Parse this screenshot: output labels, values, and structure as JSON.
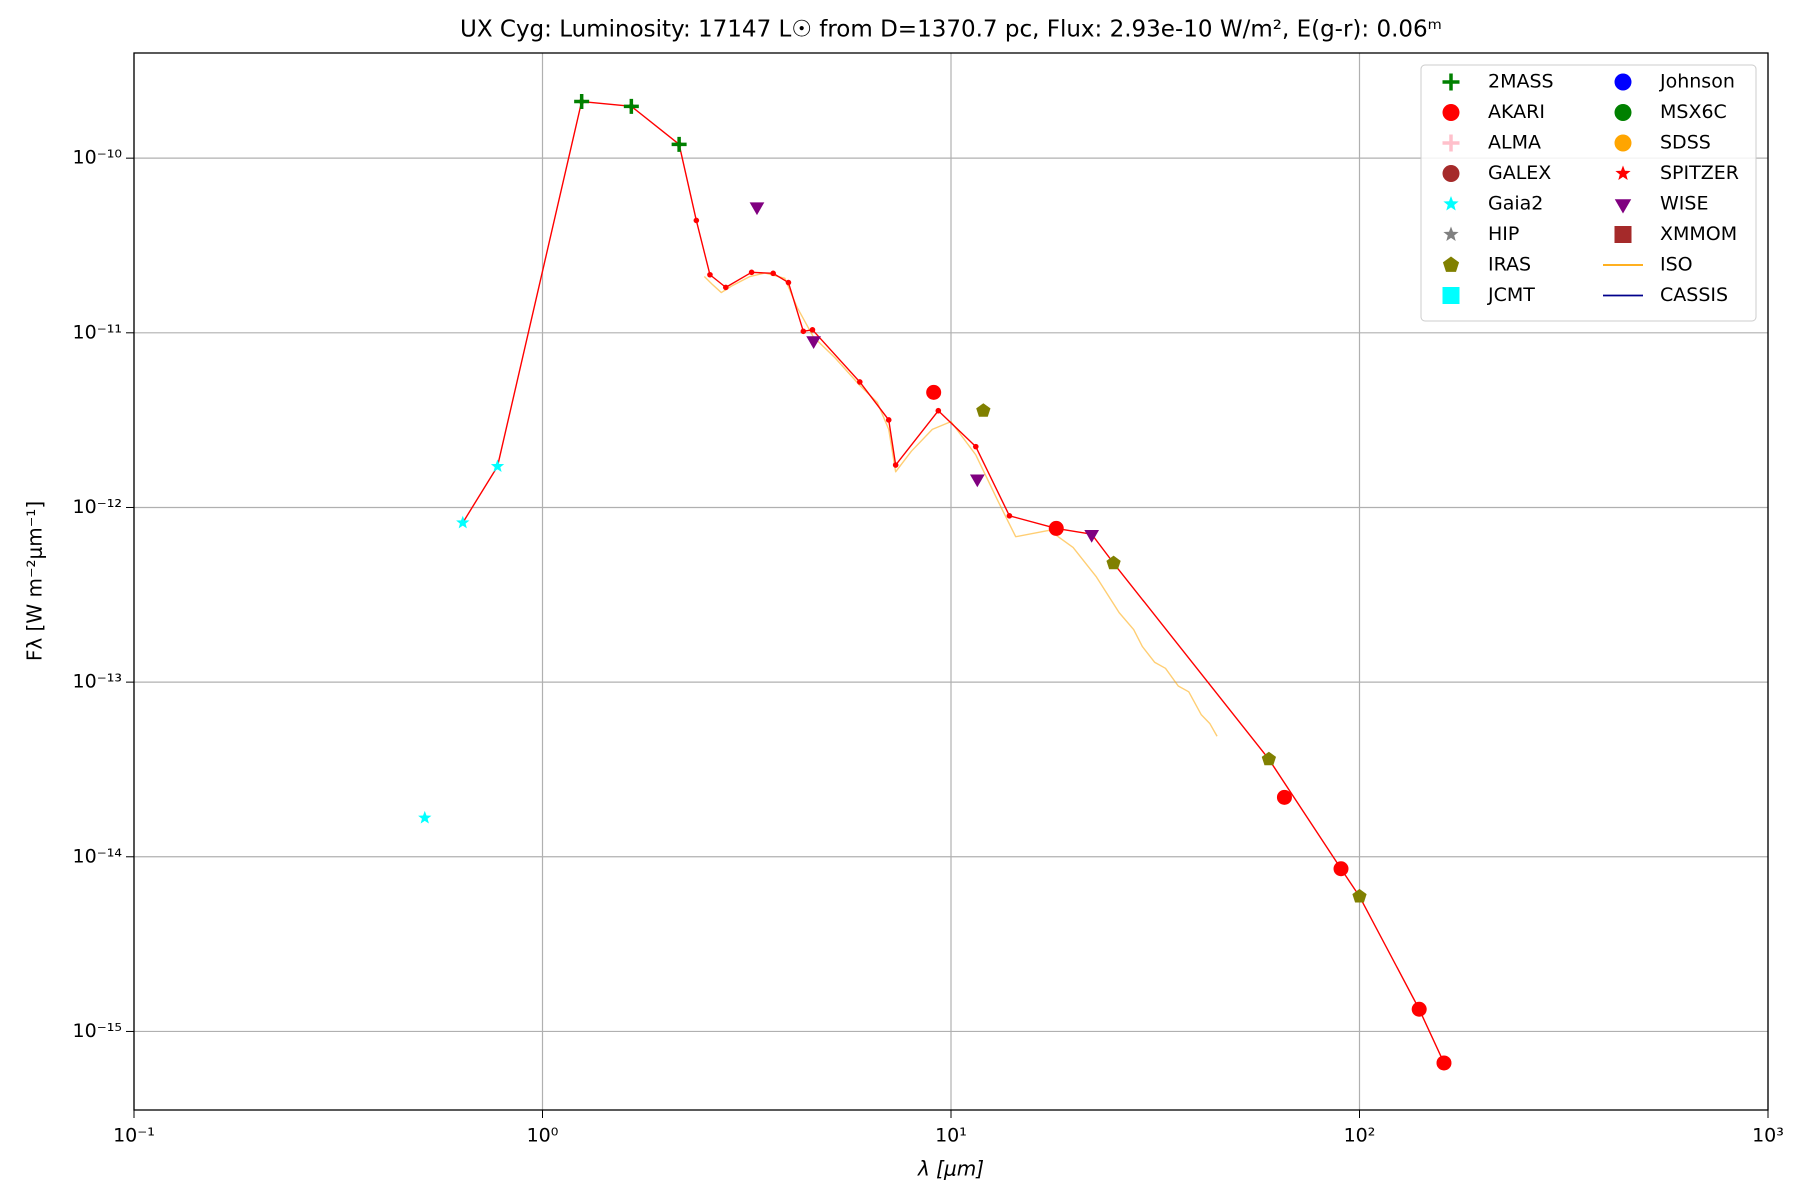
{
  "chart_data": {
    "type": "scatter",
    "title": "UX Cyg:  Luminosity: 17147 L☉ from D=1370.7 pc, Flux: 2.93e-10 W/m², E(g-r): 0.06ᵐ",
    "x_label": "λ [μm]",
    "y_label": "Fλ [W m⁻²μm⁻¹]",
    "xscale": "log",
    "yscale": "log",
    "grid": true,
    "legend_position": "upper-right",
    "xlim": [
      0.1,
      1000
    ],
    "ylim": [
      3.55e-16,
      4e-10
    ],
    "xticks": [
      {
        "value": 0.1,
        "label": "10⁻¹"
      },
      {
        "value": 1,
        "label": "10⁰"
      },
      {
        "value": 10,
        "label": "10¹"
      },
      {
        "value": 100,
        "label": "10²"
      },
      {
        "value": 1000,
        "label": "10³"
      }
    ],
    "yticks": [
      {
        "value": 1e-15,
        "label": "10⁻¹⁵"
      },
      {
        "value": 1e-14,
        "label": "10⁻¹⁴"
      },
      {
        "value": 1e-13,
        "label": "10⁻¹³"
      },
      {
        "value": 1e-12,
        "label": "10⁻¹²"
      },
      {
        "value": 1e-11,
        "label": "10⁻¹¹"
      },
      {
        "value": 1e-10,
        "label": "10⁻¹⁰"
      }
    ],
    "series": [
      {
        "name": "2MASS",
        "color": "#008000",
        "marker": "plus",
        "x": [
          1.247,
          1.65,
          2.16
        ],
        "values": [
          2.11e-10,
          1.98e-10,
          1.2e-10
        ]
      },
      {
        "name": "AKARI",
        "color": "#ff0000",
        "marker": "circle",
        "x": [
          9.07,
          18.1,
          65.5,
          90.1,
          140,
          161
        ],
        "values": [
          4.56e-12,
          7.59e-13,
          2.19e-14,
          8.54e-15,
          1.34e-15,
          6.6e-16
        ]
      },
      {
        "name": "ALMA",
        "color": "#ffc0cb",
        "marker": "plus",
        "x": [],
        "values": []
      },
      {
        "name": "GALEX",
        "color": "#a52a2a",
        "marker": "circle",
        "x": [],
        "values": []
      },
      {
        "name": "Gaia2",
        "color": "#00ffff",
        "marker": "star",
        "x": [
          0.515,
          0.638,
          0.776
        ],
        "values": [
          1.67e-14,
          8.18e-13,
          1.72e-12
        ]
      },
      {
        "name": "HIP",
        "color": "#808080",
        "marker": "star",
        "x": [],
        "values": []
      },
      {
        "name": "IRAS",
        "color": "#808000",
        "marker": "pentagon",
        "x": [
          12,
          25,
          60,
          100
        ],
        "values": [
          3.58e-12,
          4.8e-13,
          3.62e-14,
          5.93e-15
        ]
      },
      {
        "name": "JCMT",
        "color": "#00ffff",
        "marker": "square",
        "x": [],
        "values": []
      },
      {
        "name": "Johnson",
        "color": "#0000ff",
        "marker": "circle",
        "x": [],
        "values": []
      },
      {
        "name": "MSX6C",
        "color": "#008000",
        "marker": "circle",
        "x": [],
        "values": []
      },
      {
        "name": "SDSS",
        "color": "#ffa500",
        "marker": "circle",
        "x": [],
        "values": []
      },
      {
        "name": "SPITZER",
        "color": "#ff0000",
        "marker": "star",
        "x": [],
        "values": []
      },
      {
        "name": "WISE",
        "color": "#800080",
        "marker": "triangle-down",
        "x": [
          3.35,
          4.61,
          11.6,
          22.1
        ],
        "values": [
          5.28e-11,
          9.04e-12,
          1.46e-12,
          7.03e-13
        ]
      },
      {
        "name": "XMMOM",
        "color": "#a52a2a",
        "marker": "square",
        "x": [],
        "values": []
      },
      {
        "name": "ISO",
        "color": "#ffa500",
        "style": "line",
        "x": [
          2.49,
          2.6,
          2.74,
          2.9,
          3.22,
          3.5,
          3.92,
          4.2,
          4.6,
          5.2,
          5.98,
          6.6,
          7.04,
          7.32,
          8.0,
          9.0,
          10.0,
          11.5,
          13.0,
          14.4,
          17.4,
          19.9,
          22.7,
          25.8,
          28.0,
          29.4,
          31.5,
          33.5,
          36.0,
          38.2,
          41.0,
          43.0,
          44.8
        ],
        "values": [
          2.1e-11,
          1.9e-11,
          1.7e-11,
          1.85e-11,
          2.1e-11,
          2.2e-11,
          2.05e-11,
          1.4e-11,
          9.5e-12,
          7.2e-12,
          5e-12,
          4e-12,
          2.8e-12,
          1.6e-12,
          2.1e-12,
          2.8e-12,
          3.1e-12,
          2e-12,
          1.1e-12,
          6.8e-13,
          7.4e-13,
          5.9e-13,
          4e-13,
          2.5e-13,
          2e-13,
          1.6e-13,
          1.3e-13,
          1.2e-13,
          9.5e-14,
          8.8e-14,
          6.5e-14,
          5.8e-14,
          4.9e-14
        ]
      },
      {
        "name": "CASSIS",
        "color": "#00008b",
        "style": "line",
        "x": [],
        "values": []
      },
      {
        "color": "#ff0000",
        "style": "line",
        "marker": "dot",
        "x": [
          0.638,
          0.776,
          1.247,
          1.65,
          2.16,
          2.38,
          2.57,
          2.81,
          3.25,
          3.67,
          4.0,
          4.35,
          4.58,
          5.98,
          7.04,
          7.32,
          9.31,
          11.5,
          13.9,
          18.1,
          22.1,
          25,
          60,
          90.1,
          100,
          140,
          161
        ],
        "values": [
          8.18e-13,
          1.72e-12,
          2.11e-10,
          1.98e-10,
          1.2e-10,
          4.4e-11,
          2.15e-11,
          1.82e-11,
          2.22e-11,
          2.19e-11,
          1.94e-11,
          1.02e-11,
          1.04e-11,
          5.23e-12,
          3.17e-12,
          1.75e-12,
          3.58e-12,
          2.23e-12,
          8.96e-13,
          7.59e-13,
          7.03e-13,
          4.8e-13,
          3.62e-14,
          8.54e-15,
          5.93e-15,
          1.34e-15,
          6.6e-16
        ]
      }
    ]
  }
}
